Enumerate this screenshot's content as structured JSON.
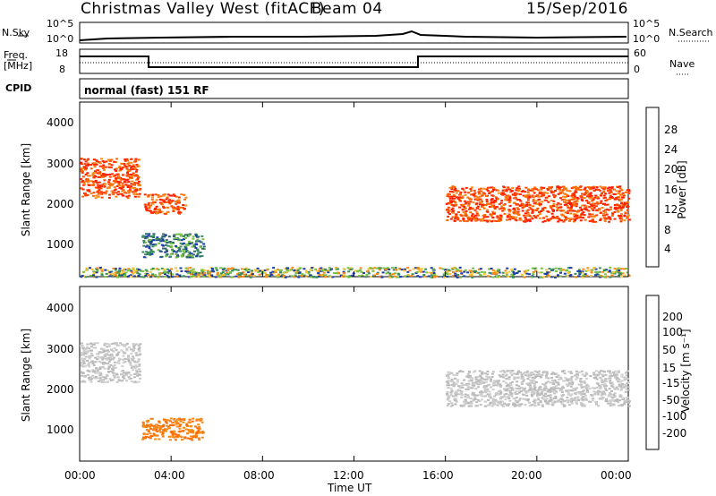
{
  "header": {
    "station": "Christmas Valley West (fitACF)",
    "beam": "Beam 04",
    "date": "15/Sep/2016"
  },
  "top_panels": {
    "nsky_label": "N.Sky",
    "nsearch_label": "N.Search",
    "nsky_left_ticks": [
      "10^5",
      "10^0"
    ],
    "nsky_right_ticks": [
      "10^5",
      "10^0"
    ],
    "freq_label": "Freq.",
    "freq_unit": "[MHz]",
    "freq_ticks": [
      "18",
      "8"
    ],
    "nave_label": "Nave",
    "nave_ticks": [
      "60",
      "0"
    ],
    "cpid_label": "CPID",
    "cpid_value": "normal (fast) 151 RF"
  },
  "chart_data": [
    {
      "type": "heatmap",
      "quantity": "Power",
      "ylabel": "Slant Range [km]",
      "ylim": [
        200,
        4600
      ],
      "yticks": [
        "4000",
        "3000",
        "2000",
        "1000"
      ],
      "xlim_hours": [
        0,
        24
      ],
      "colorbar_label": "Power [dB]",
      "colorbar_ticks": [
        "28",
        "24",
        "20",
        "16",
        "12",
        "8",
        "4"
      ],
      "colorbar_colors": [
        "#0010ff",
        "#1c3aa8",
        "#2c6a6a",
        "#3a8f5a",
        "#79c043",
        "#f4c838",
        "#f58a1a",
        "#ff3300",
        "#ff1a00"
      ],
      "regions": [
        {
          "t0": 0.0,
          "t1": 2.6,
          "r0": 2200,
          "r1": 3200,
          "level": "high"
        },
        {
          "t0": 2.8,
          "t1": 4.6,
          "r0": 1800,
          "r1": 2300,
          "level": "high"
        },
        {
          "t0": 2.7,
          "t1": 5.4,
          "r0": 700,
          "r1": 1300,
          "level": "medium"
        },
        {
          "t0": 16.0,
          "t1": 24.0,
          "r0": 1600,
          "r1": 2500,
          "level": "high"
        },
        {
          "t0": 0.0,
          "t1": 24.0,
          "r0": 200,
          "r1": 450,
          "level": "low"
        }
      ]
    },
    {
      "type": "heatmap",
      "quantity": "Velocity",
      "ylabel": "Slant Range [km]",
      "ylim": [
        200,
        4600
      ],
      "yticks": [
        "4000",
        "3000",
        "2000",
        "1000"
      ],
      "xlim_hours": [
        0,
        24
      ],
      "colorbar_label": "Velocity [m s⁻¹]",
      "colorbar_ticks": [
        "200",
        "100",
        "50",
        "15",
        "-15",
        "-50",
        "-100",
        "-200"
      ],
      "colorbar_colors": [
        "#2244cc",
        "#2c6a6a",
        "#3a9a4a",
        "#7acc3a",
        "#c8c8c8",
        "#f4c838",
        "#f58a1a",
        "#ff4400",
        "#ff0000"
      ],
      "regions": [
        {
          "t0": 0.0,
          "t1": 2.6,
          "r0": 2200,
          "r1": 3200,
          "level": "grey"
        },
        {
          "t0": 2.7,
          "t1": 5.4,
          "r0": 750,
          "r1": 1300,
          "level": "orange"
        },
        {
          "t0": 16.0,
          "t1": 24.0,
          "r0": 1600,
          "r1": 2500,
          "level": "grey"
        }
      ]
    }
  ],
  "x_axis": {
    "ticks": [
      "00:00",
      "04:00",
      "08:00",
      "12:00",
      "16:00",
      "20:00",
      "00:00"
    ],
    "label": "Time UT"
  }
}
